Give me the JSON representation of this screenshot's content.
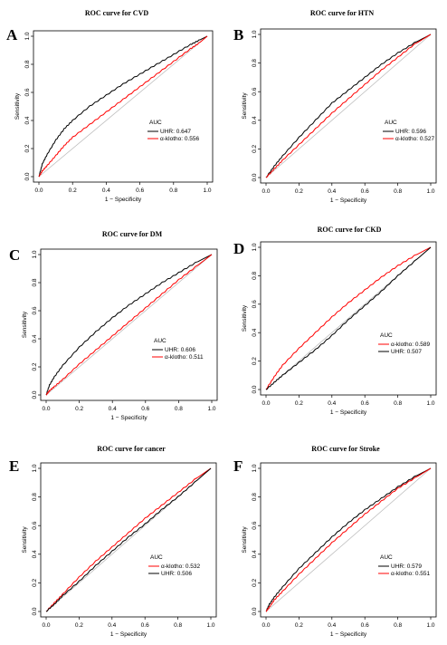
{
  "chart_data": [
    {
      "type": "line",
      "panel_label": "A",
      "title": "ROC curve for CVD",
      "xlabel": "1 − Specificity",
      "ylabel": "Sensitivity",
      "xlim": [
        0,
        1
      ],
      "ylim": [
        0,
        1
      ],
      "ticks": [
        "0.0",
        "0.2",
        "0.4",
        "0.6",
        "0.8",
        "1.0"
      ],
      "legend_title": "AUC",
      "series": [
        {
          "name": "UHR: 0.647",
          "color": "#000000",
          "x": [
            0,
            0.02,
            0.05,
            0.1,
            0.15,
            0.2,
            0.3,
            0.4,
            0.5,
            0.6,
            0.7,
            0.8,
            0.9,
            0.95,
            1.0
          ],
          "y": [
            0,
            0.09,
            0.16,
            0.26,
            0.34,
            0.4,
            0.5,
            0.58,
            0.66,
            0.73,
            0.8,
            0.87,
            0.94,
            0.97,
            1.0
          ]
        },
        {
          "name": "α-klotho: 0.556",
          "color": "#ff0000",
          "x": [
            0,
            0.02,
            0.05,
            0.1,
            0.15,
            0.2,
            0.3,
            0.4,
            0.5,
            0.6,
            0.7,
            0.8,
            0.9,
            0.95,
            1.0
          ],
          "y": [
            0,
            0.04,
            0.08,
            0.15,
            0.22,
            0.28,
            0.37,
            0.46,
            0.55,
            0.64,
            0.73,
            0.82,
            0.91,
            0.95,
            1.0
          ]
        }
      ]
    },
    {
      "type": "line",
      "panel_label": "B",
      "title": "ROC curve for HTN",
      "xlabel": "1 − Specificity",
      "ylabel": "Sensitivity",
      "xlim": [
        0,
        1
      ],
      "ylim": [
        0,
        1
      ],
      "ticks": [
        "0.0",
        "0.2",
        "0.4",
        "0.6",
        "0.8",
        "1.0"
      ],
      "legend_title": "AUC",
      "series": [
        {
          "name": "UHR: 0.596",
          "color": "#000000",
          "x": [
            0,
            0.05,
            0.1,
            0.2,
            0.3,
            0.4,
            0.5,
            0.6,
            0.7,
            0.8,
            0.9,
            1.0
          ],
          "y": [
            0,
            0.08,
            0.15,
            0.28,
            0.4,
            0.52,
            0.61,
            0.7,
            0.79,
            0.87,
            0.94,
            1.0
          ]
        },
        {
          "name": "α-klotho: 0.527",
          "color": "#ff0000",
          "x": [
            0,
            0.05,
            0.1,
            0.2,
            0.3,
            0.4,
            0.5,
            0.6,
            0.7,
            0.8,
            0.9,
            1.0
          ],
          "y": [
            0,
            0.06,
            0.12,
            0.23,
            0.34,
            0.45,
            0.55,
            0.65,
            0.75,
            0.84,
            0.93,
            1.0
          ]
        }
      ]
    },
    {
      "type": "line",
      "panel_label": "C",
      "title": "ROC curve for DM",
      "xlabel": "1 − Specificity",
      "ylabel": "Sensitivity",
      "xlim": [
        0,
        1
      ],
      "ylim": [
        0,
        1
      ],
      "ticks": [
        "0.0",
        "0.2",
        "0.4",
        "0.6",
        "0.8",
        "1.0"
      ],
      "legend_title": "AUC",
      "series": [
        {
          "name": "UHR: 0.606",
          "color": "#000000",
          "x": [
            0,
            0.02,
            0.05,
            0.1,
            0.2,
            0.3,
            0.4,
            0.5,
            0.6,
            0.7,
            0.8,
            0.9,
            1.0
          ],
          "y": [
            0,
            0.07,
            0.13,
            0.21,
            0.34,
            0.45,
            0.55,
            0.64,
            0.72,
            0.8,
            0.87,
            0.94,
            1.0
          ]
        },
        {
          "name": "α-klotho: 0.511",
          "color": "#ff0000",
          "x": [
            0,
            0.02,
            0.05,
            0.1,
            0.2,
            0.3,
            0.4,
            0.5,
            0.6,
            0.7,
            0.8,
            0.9,
            1.0
          ],
          "y": [
            0,
            0.03,
            0.06,
            0.11,
            0.22,
            0.32,
            0.42,
            0.52,
            0.62,
            0.72,
            0.82,
            0.91,
            1.0
          ]
        }
      ]
    },
    {
      "type": "line",
      "panel_label": "D",
      "title": "ROC curve for CKD",
      "xlabel": "1 − Specificity",
      "ylabel": "Sensitivity",
      "xlim": [
        0,
        1
      ],
      "ylim": [
        0,
        1
      ],
      "ticks": [
        "0.0",
        "0.2",
        "0.4",
        "0.6",
        "0.8",
        "1.0"
      ],
      "legend_title": "AUC",
      "series": [
        {
          "name": "α-klotho: 0.589",
          "color": "#ff0000",
          "x": [
            0,
            0.05,
            0.1,
            0.2,
            0.3,
            0.4,
            0.5,
            0.6,
            0.7,
            0.8,
            0.9,
            1.0
          ],
          "y": [
            0,
            0.09,
            0.17,
            0.29,
            0.4,
            0.51,
            0.61,
            0.7,
            0.79,
            0.87,
            0.94,
            1.0
          ]
        },
        {
          "name": "UHR: 0.507",
          "color": "#000000",
          "x": [
            0,
            0.05,
            0.1,
            0.2,
            0.3,
            0.4,
            0.5,
            0.6,
            0.7,
            0.8,
            0.9,
            1.0
          ],
          "y": [
            0,
            0.05,
            0.1,
            0.19,
            0.28,
            0.38,
            0.49,
            0.59,
            0.69,
            0.8,
            0.9,
            1.0
          ]
        }
      ]
    },
    {
      "type": "line",
      "panel_label": "E",
      "title": "ROC curve for cancer",
      "xlabel": "1 − Specificity",
      "ylabel": "Sensitivity",
      "xlim": [
        0,
        1
      ],
      "ylim": [
        0,
        1
      ],
      "ticks": [
        "0.0",
        "0.2",
        "0.4",
        "0.6",
        "0.8",
        "1.0"
      ],
      "legend_title": "AUC",
      "series": [
        {
          "name": "α-klotho: 0.532",
          "color": "#ff0000",
          "x": [
            0,
            0.05,
            0.1,
            0.2,
            0.3,
            0.4,
            0.5,
            0.6,
            0.7,
            0.8,
            0.9,
            1.0
          ],
          "y": [
            0,
            0.06,
            0.12,
            0.24,
            0.35,
            0.45,
            0.55,
            0.65,
            0.74,
            0.83,
            0.92,
            1.0
          ]
        },
        {
          "name": "UHR: 0.506",
          "color": "#000000",
          "x": [
            0,
            0.05,
            0.1,
            0.2,
            0.3,
            0.4,
            0.5,
            0.6,
            0.7,
            0.8,
            0.9,
            1.0
          ],
          "y": [
            0,
            0.05,
            0.11,
            0.21,
            0.32,
            0.42,
            0.52,
            0.61,
            0.71,
            0.8,
            0.9,
            1.0
          ]
        }
      ]
    },
    {
      "type": "line",
      "panel_label": "F",
      "title": "ROC curve for Stroke",
      "xlabel": "1 − Specificity",
      "ylabel": "Sensitivity",
      "xlim": [
        0,
        1
      ],
      "ylim": [
        0,
        1
      ],
      "ticks": [
        "0.0",
        "0.2",
        "0.4",
        "0.6",
        "0.8",
        "1.0"
      ],
      "legend_title": "AUC",
      "series": [
        {
          "name": "UHR: 0.579",
          "color": "#000000",
          "x": [
            0,
            0.02,
            0.05,
            0.1,
            0.2,
            0.3,
            0.4,
            0.5,
            0.6,
            0.7,
            0.8,
            0.9,
            1.0
          ],
          "y": [
            0,
            0.05,
            0.1,
            0.17,
            0.3,
            0.41,
            0.52,
            0.62,
            0.71,
            0.79,
            0.87,
            0.94,
            1.0
          ]
        },
        {
          "name": "α-klotho: 0.551",
          "color": "#ff0000",
          "x": [
            0,
            0.02,
            0.05,
            0.1,
            0.2,
            0.3,
            0.4,
            0.5,
            0.6,
            0.7,
            0.8,
            0.9,
            1.0
          ],
          "y": [
            0,
            0.03,
            0.08,
            0.14,
            0.26,
            0.37,
            0.48,
            0.58,
            0.68,
            0.77,
            0.86,
            0.93,
            1.0
          ]
        }
      ]
    }
  ]
}
